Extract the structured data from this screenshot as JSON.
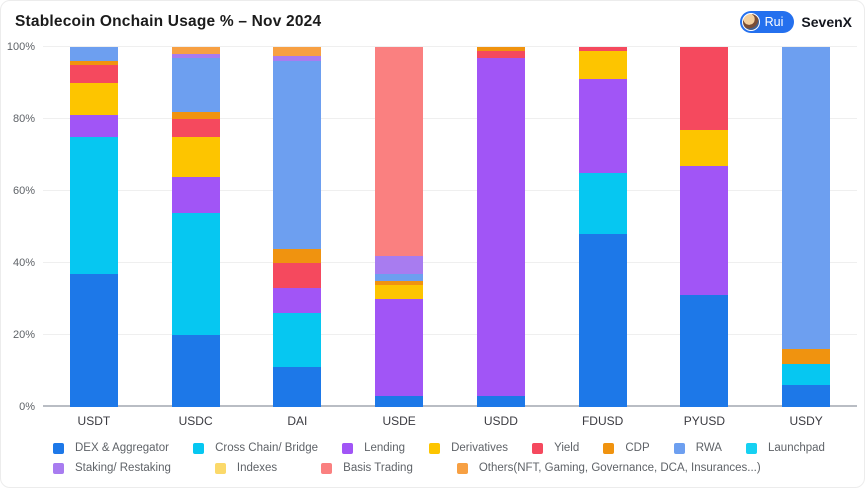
{
  "header": {
    "title": "Stablecoin Onchain Usage % – Nov 2024",
    "author_badge": {
      "name": "Rui",
      "org": "SevenX",
      "pill_color": "#2470ee"
    }
  },
  "chart_data": {
    "type": "bar",
    "stacked": true,
    "title": "Stablecoin Onchain Usage % – Nov 2024",
    "categories": [
      "USDT",
      "USDC",
      "DAI",
      "USDE",
      "USDD",
      "FDUSD",
      "PYUSD",
      "USDY"
    ],
    "yticks": [
      "0%",
      "20%",
      "40%",
      "60%",
      "80%",
      "100%"
    ],
    "ylim": [
      0,
      100
    ],
    "grid": true,
    "legend_position": "bottom",
    "legend_row_split": 8,
    "series": [
      {
        "name": "DEX & Aggregator",
        "color": "#1d78e8",
        "values": [
          37,
          20,
          11,
          3,
          3,
          48,
          31,
          6
        ]
      },
      {
        "name": "Cross Chain/ Bridge",
        "color": "#06c7f1",
        "values": [
          38,
          34,
          15,
          0,
          0,
          17,
          0,
          6
        ]
      },
      {
        "name": "Lending",
        "color": "#a155f6",
        "values": [
          6,
          10,
          7,
          27,
          94,
          26,
          36,
          0
        ]
      },
      {
        "name": "Derivatives",
        "color": "#fdc500",
        "values": [
          9,
          11,
          0,
          4,
          0,
          8,
          10,
          0
        ]
      },
      {
        "name": "Yield",
        "color": "#f5495e",
        "values": [
          5,
          5,
          7,
          0,
          2,
          1,
          23,
          0
        ]
      },
      {
        "name": "CDP",
        "color": "#f0930f",
        "values": [
          1,
          2,
          4,
          1,
          1,
          0,
          0,
          4
        ]
      },
      {
        "name": "RWA",
        "color": "#6d9ff0",
        "values": [
          4,
          15,
          52,
          2,
          0,
          0,
          0,
          84
        ]
      },
      {
        "name": "Launchpad",
        "color": "#16d1f2",
        "values": [
          0,
          0,
          0,
          0,
          0,
          0,
          0,
          0
        ]
      },
      {
        "name": "Staking/ Restaking",
        "color": "#a87cf0",
        "values": [
          0,
          1,
          1.5,
          5,
          0,
          0,
          0,
          0
        ]
      },
      {
        "name": "Indexes",
        "color": "#fbd96a",
        "values": [
          0,
          0,
          0,
          0,
          0,
          0,
          0,
          0
        ]
      },
      {
        "name": "Basis Trading",
        "color": "#fa8080",
        "values": [
          0,
          0,
          0,
          58,
          0,
          0,
          0,
          0
        ]
      },
      {
        "name": "Others(NFT, Gaming, Governance, DCA, Insurances...)",
        "color": "#f7a043",
        "values": [
          0,
          2,
          2.5,
          0,
          0,
          0,
          0,
          0
        ]
      }
    ]
  }
}
